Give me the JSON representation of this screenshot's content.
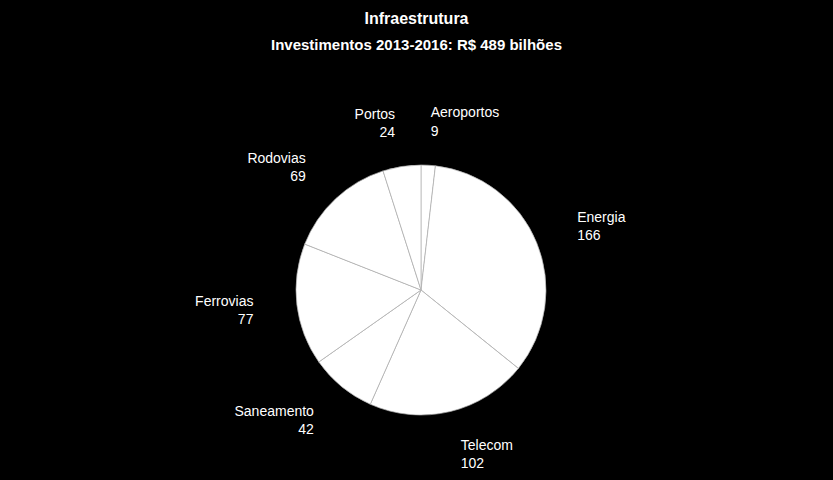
{
  "chart_data": {
    "type": "pie",
    "title": "Infraestrutura",
    "subtitle": "Investimentos 2013-2016: R$ 489 bilhões",
    "categories": [
      "Aeroportos",
      "Energia",
      "Telecom",
      "Saneamento",
      "Ferrovias",
      "Rodovias",
      "Portos"
    ],
    "values": [
      9,
      166,
      102,
      42,
      77,
      69,
      24
    ],
    "color": "#ffffff",
    "data_labels": true
  }
}
